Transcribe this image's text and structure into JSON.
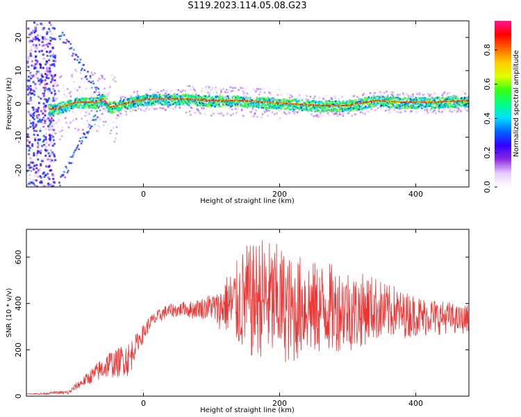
{
  "title": "S119.2023.114.05.08.G23",
  "chart_data": [
    {
      "type": "heatmap",
      "xlabel": "Height of straight line (km)",
      "ylabel": "Frequency (Hz)",
      "xlim": [
        -172,
        478
      ],
      "ylim": [
        -25,
        25
      ],
      "xticks": [
        0,
        200,
        400
      ],
      "yticks": [
        -20,
        -10,
        0,
        10,
        20
      ],
      "grid": false,
      "colorbar": {
        "label": "Normalized spectral amplitude",
        "range": [
          0,
          0.97
        ],
        "ticks": [
          0.0,
          0.2,
          0.4,
          0.6,
          0.8
        ],
        "colormap": [
          "#ffffff",
          "#e6ccff",
          "#8a2be2",
          "#3200ff",
          "#0064ff",
          "#00e0ff",
          "#00ff7f",
          "#39ff14",
          "#e0ff00",
          "#ffcc00",
          "#ff6600",
          "#ff0000",
          "#ff1493"
        ]
      },
      "ridge": [
        {
          "x": -130,
          "f": -1.5
        },
        {
          "x": -100,
          "f": 0.5
        },
        {
          "x": -70,
          "f": 0.5
        },
        {
          "x": -60,
          "f": 1.5
        },
        {
          "x": -50,
          "f": -1.0
        },
        {
          "x": -30,
          "f": 0.0
        },
        {
          "x": -10,
          "f": 1.0
        },
        {
          "x": 10,
          "f": 1.5
        },
        {
          "x": 30,
          "f": 1.5
        },
        {
          "x": 60,
          "f": 1.5
        },
        {
          "x": 100,
          "f": 1.0
        },
        {
          "x": 140,
          "f": 1.0
        },
        {
          "x": 180,
          "f": 0.5
        },
        {
          "x": 220,
          "f": 0.0
        },
        {
          "x": 260,
          "f": -0.5
        },
        {
          "x": 300,
          "f": -0.5
        },
        {
          "x": 340,
          "f": 1.0
        },
        {
          "x": 380,
          "f": 0.5
        },
        {
          "x": 420,
          "f": 0.5
        },
        {
          "x": 478,
          "f": 1.0
        }
      ]
    },
    {
      "type": "line",
      "xlabel": "Height of straight line (km)",
      "ylabel": "SNR (10 * v/v)",
      "xlim": [
        -172,
        478
      ],
      "ylim": [
        0,
        720
      ],
      "xticks": [
        0,
        200,
        400
      ],
      "yticks": [
        0,
        200,
        400,
        600
      ],
      "grid": false,
      "color": "#ee3333",
      "series": [
        {
          "x": [
            -172,
            -150,
            -130,
            -110,
            -100,
            -90,
            -80,
            -70,
            -60,
            -50,
            -40,
            -30,
            -20,
            -15,
            -10,
            0,
            10,
            20,
            30,
            40,
            50,
            60,
            70,
            80,
            90,
            100,
            110,
            120,
            130,
            140,
            150,
            160,
            170,
            180,
            190,
            200,
            210,
            220,
            230,
            240,
            250,
            260,
            270,
            280,
            290,
            300,
            310,
            320,
            330,
            340,
            350,
            360,
            370,
            380,
            390,
            400,
            410,
            420,
            430,
            440,
            450,
            460,
            470,
            478
          ],
          "values": [
            10,
            10,
            15,
            15,
            40,
            60,
            80,
            100,
            120,
            140,
            140,
            160,
            160,
            200,
            230,
            270,
            320,
            340,
            360,
            370,
            370,
            380,
            370,
            380,
            380,
            390,
            370,
            400,
            390,
            400,
            420,
            400,
            430,
            420,
            400,
            410,
            380,
            360,
            390,
            400,
            370,
            380,
            390,
            370,
            380,
            380,
            360,
            370,
            380,
            380,
            370,
            360,
            370,
            350,
            350,
            350,
            340,
            350,
            340,
            340,
            340,
            330,
            330,
            340
          ],
          "spread": [
            0,
            5,
            5,
            10,
            15,
            20,
            30,
            40,
            50,
            60,
            60,
            70,
            80,
            60,
            40,
            40,
            30,
            30,
            30,
            30,
            30,
            30,
            40,
            40,
            50,
            60,
            80,
            120,
            160,
            200,
            240,
            250,
            260,
            270,
            260,
            250,
            240,
            230,
            220,
            220,
            210,
            200,
            200,
            190,
            180,
            180,
            170,
            160,
            150,
            140,
            130,
            120,
            110,
            100,
            100,
            90,
            90,
            80,
            80,
            70,
            70,
            60,
            60,
            60
          ]
        }
      ]
    }
  ]
}
